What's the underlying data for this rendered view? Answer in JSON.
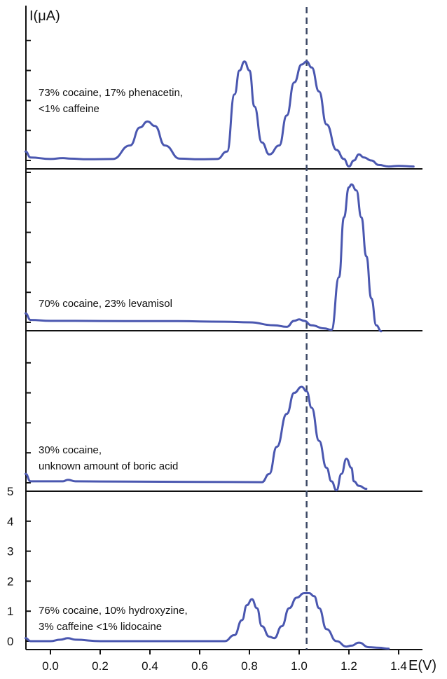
{
  "chart_data": {
    "type": "line",
    "ylabel": "I(μA)",
    "xlabel": "E(V)",
    "xlim": [
      -0.1,
      1.45
    ],
    "x_ticks": [
      "0.0",
      "0.2",
      "0.4",
      "0.6",
      "0.8",
      "1.0",
      "1.2",
      "1.4"
    ],
    "y_ticks": [
      "0",
      "1",
      "2",
      "3",
      "4",
      "5"
    ],
    "ylim": [
      -0.25,
      5.0
    ],
    "reference_line_x": 1.03,
    "colors": {
      "trace": "#4a57b0",
      "reference_line": "#3d4a66",
      "axes": "#111111"
    },
    "panels": [
      {
        "label": [
          "73% cocaine, 17% phenacetin,",
          "<1% caffeine"
        ],
        "x": [
          -0.1,
          -0.08,
          0.0,
          0.05,
          0.08,
          0.15,
          0.25,
          0.32,
          0.36,
          0.39,
          0.42,
          0.46,
          0.52,
          0.6,
          0.67,
          0.71,
          0.74,
          0.76,
          0.78,
          0.8,
          0.82,
          0.85,
          0.88,
          0.92,
          0.95,
          0.98,
          1.01,
          1.03,
          1.05,
          1.08,
          1.11,
          1.15,
          1.18,
          1.2,
          1.22,
          1.24,
          1.26,
          1.29,
          1.32,
          1.36,
          1.4,
          1.46
        ],
        "y": [
          0.3,
          0.1,
          0.05,
          0.08,
          0.06,
          0.04,
          0.05,
          0.5,
          1.1,
          1.3,
          1.15,
          0.5,
          0.06,
          0.04,
          0.05,
          0.3,
          2.2,
          3.0,
          3.3,
          3.0,
          1.8,
          0.6,
          0.2,
          0.5,
          1.5,
          2.6,
          3.2,
          3.3,
          3.1,
          2.3,
          1.2,
          0.35,
          0.05,
          -0.2,
          0.0,
          0.2,
          0.1,
          0.0,
          -0.15,
          -0.2,
          -0.18,
          -0.2
        ]
      },
      {
        "label": [
          "70% cocaine, 23% levamisol"
        ],
        "x": [
          -0.1,
          -0.08,
          0.0,
          0.1,
          0.3,
          0.5,
          0.7,
          0.8,
          0.9,
          0.95,
          0.98,
          1.0,
          1.02,
          1.05,
          1.1,
          1.13,
          1.16,
          1.18,
          1.2,
          1.21,
          1.23,
          1.25,
          1.27,
          1.29,
          1.31,
          1.33
        ],
        "y": [
          0.3,
          0.08,
          0.05,
          0.05,
          0.04,
          0.04,
          0.02,
          0.0,
          -0.1,
          -0.15,
          0.05,
          0.1,
          0.05,
          -0.1,
          -0.2,
          -0.25,
          1.5,
          3.5,
          4.5,
          4.6,
          4.4,
          3.5,
          2.2,
          0.8,
          -0.1,
          -0.3
        ]
      },
      {
        "label": [
          "30% cocaine,",
          "unknown amount of boric acid"
        ],
        "x": [
          -0.1,
          -0.08,
          0.0,
          0.05,
          0.07,
          0.1,
          0.3,
          0.6,
          0.85,
          0.88,
          0.91,
          0.95,
          0.98,
          1.01,
          1.03,
          1.05,
          1.08,
          1.11,
          1.13,
          1.15,
          1.17,
          1.19,
          1.21,
          1.22,
          1.24,
          1.27
        ],
        "y": [
          0.3,
          0.05,
          0.05,
          0.05,
          0.1,
          0.05,
          0.04,
          0.03,
          0.02,
          0.3,
          1.2,
          2.3,
          3.0,
          3.2,
          3.05,
          2.5,
          1.4,
          0.5,
          0.05,
          -0.25,
          0.3,
          0.8,
          0.5,
          0.05,
          -0.1,
          -0.2
        ]
      },
      {
        "label": [
          "76% cocaine, 10% hydroxyzine,",
          "3% caffeine <1% lidocaine"
        ],
        "x": [
          -0.1,
          -0.08,
          0.0,
          0.04,
          0.07,
          0.1,
          0.2,
          0.5,
          0.7,
          0.74,
          0.77,
          0.79,
          0.81,
          0.83,
          0.85,
          0.88,
          0.9,
          0.93,
          0.96,
          0.99,
          1.02,
          1.04,
          1.06,
          1.08,
          1.11,
          1.15,
          1.19,
          1.21,
          1.24,
          1.28,
          1.32,
          1.36
        ],
        "y": [
          0.1,
          0.0,
          0.0,
          0.05,
          0.1,
          0.05,
          0.0,
          0.0,
          0.0,
          0.2,
          0.7,
          1.2,
          1.4,
          1.1,
          0.5,
          0.15,
          0.1,
          0.5,
          1.1,
          1.45,
          1.6,
          1.6,
          1.5,
          1.1,
          0.4,
          0.0,
          -0.18,
          -0.15,
          -0.05,
          -0.2,
          -0.22,
          -0.25
        ]
      }
    ]
  }
}
